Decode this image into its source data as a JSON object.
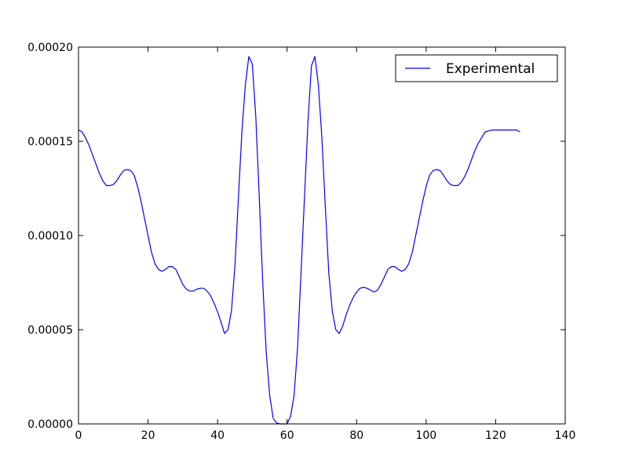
{
  "chart_data": {
    "type": "line",
    "title": "",
    "xlabel": "",
    "ylabel": "",
    "xlim": [
      0,
      140
    ],
    "ylim": [
      0,
      0.0002
    ],
    "xticks": [
      0,
      20,
      40,
      60,
      80,
      100,
      120,
      140
    ],
    "xtick_labels": [
      "0",
      "20",
      "40",
      "60",
      "80",
      "100",
      "120",
      "140"
    ],
    "yticks": [
      0,
      5e-05,
      0.0001,
      0.00015,
      0.0002
    ],
    "ytick_labels": [
      "0.00000",
      "0.00005",
      "0.00010",
      "0.00015",
      "0.00020"
    ],
    "grid": false,
    "legend_position": "top-right",
    "series": [
      {
        "name": "Experimental",
        "color": "#0000ff",
        "x": [
          0,
          1,
          2,
          3,
          4,
          5,
          6,
          7,
          8,
          9,
          10,
          11,
          12,
          13,
          14,
          15,
          16,
          17,
          18,
          19,
          20,
          21,
          22,
          23,
          24,
          25,
          26,
          27,
          28,
          29,
          30,
          31,
          32,
          33,
          34,
          35,
          36,
          37,
          38,
          39,
          40,
          41,
          42,
          43,
          44,
          45,
          46,
          47,
          48,
          49,
          50,
          51,
          52,
          53,
          54,
          55,
          56,
          57,
          58,
          59,
          60,
          61,
          62,
          63,
          64,
          65,
          66,
          67,
          68,
          69,
          70,
          71,
          72,
          73,
          74,
          75,
          76,
          77,
          78,
          79,
          80,
          81,
          82,
          83,
          84,
          85,
          86,
          87,
          88,
          89,
          90,
          91,
          92,
          93,
          94,
          95,
          96,
          97,
          98,
          99,
          100,
          101,
          102,
          103,
          104,
          105,
          106,
          107,
          108,
          109,
          110,
          111,
          112,
          113,
          114,
          115,
          116,
          117,
          118,
          119,
          120,
          121,
          122,
          123,
          124,
          125,
          126,
          127
        ],
        "y": [
          0.000156,
          0.000155,
          0.000152,
          0.000148,
          0.000143,
          0.000138,
          0.000133,
          0.000129,
          0.0001265,
          0.0001265,
          0.000127,
          0.000129,
          0.000132,
          0.0001345,
          0.000135,
          0.0001345,
          0.000132,
          0.000126,
          0.000118,
          0.000109,
          0.0001,
          9.1e-05,
          8.5e-05,
          8.2e-05,
          8.1e-05,
          8.2e-05,
          8.35e-05,
          8.35e-05,
          8.2e-05,
          7.8e-05,
          7.4e-05,
          7.15e-05,
          7.05e-05,
          7.05e-05,
          7.15e-05,
          7.2e-05,
          7.2e-05,
          7.05e-05,
          6.8e-05,
          6.4e-05,
          5.95e-05,
          5.4e-05,
          4.8e-05,
          5e-05,
          6e-05,
          8.4e-05,
          0.00012,
          0.000155,
          0.00018,
          0.000195,
          0.000191,
          0.000163,
          0.00012,
          7.5e-05,
          3.8e-05,
          1.5e-05,
          3e-06,
          5e-07,
          0.0,
          0.0,
          0.0,
          4e-06,
          1.5e-05,
          4e-05,
          8e-05,
          0.00012,
          0.00016,
          0.00019,
          0.000195,
          0.00018,
          0.000152,
          0.000115,
          8e-05,
          6e-05,
          5e-05,
          4.8e-05,
          5.2e-05,
          5.8e-05,
          6.3e-05,
          6.7e-05,
          7e-05,
          7.2e-05,
          7.25e-05,
          7.2e-05,
          7.1e-05,
          7e-05,
          7.1e-05,
          7.4e-05,
          7.8e-05,
          8.2e-05,
          8.35e-05,
          8.35e-05,
          8.2e-05,
          8.1e-05,
          8.2e-05,
          8.5e-05,
          9.1e-05,
          0.0001,
          0.000109,
          0.000118,
          0.000126,
          0.000132,
          0.0001345,
          0.000135,
          0.0001345,
          0.000132,
          0.000129,
          0.000127,
          0.0001265,
          0.0001265,
          0.000128,
          0.000131,
          0.000135,
          0.00014,
          0.000145,
          0.000149,
          0.000152,
          0.000155,
          0.0001555,
          0.000156,
          0.000156,
          0.000156,
          0.000156,
          0.000156,
          0.000156,
          0.000156,
          0.000156,
          0.000155
        ]
      }
    ]
  }
}
